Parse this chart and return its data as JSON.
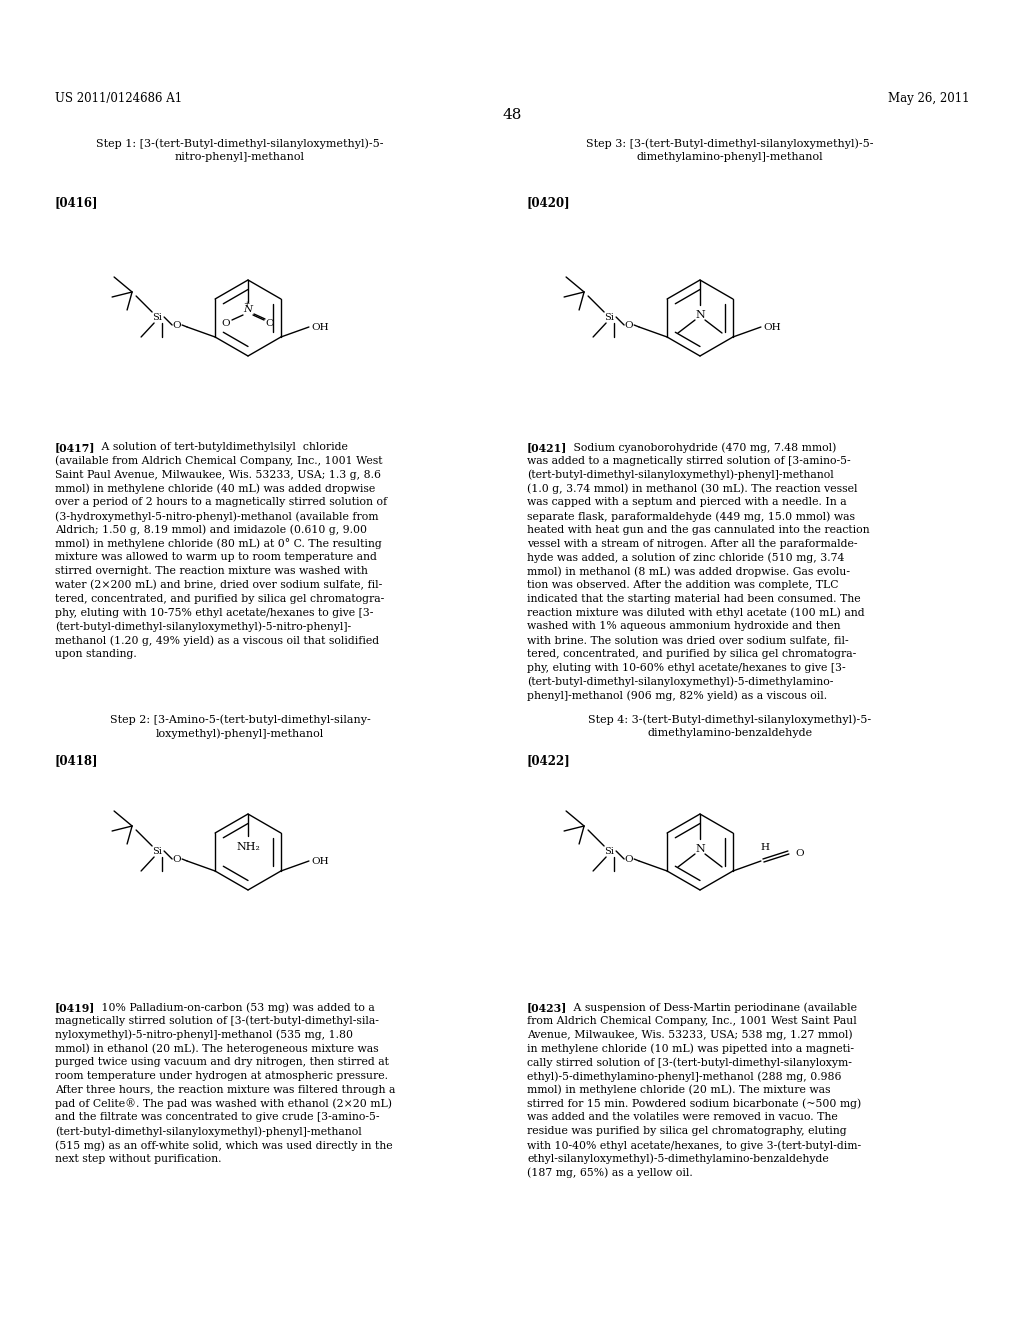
{
  "bg_color": "#ffffff",
  "page_width": 10.24,
  "page_height": 13.2,
  "header_left": "US 2011/0124686 A1",
  "header_right": "May 26, 2011",
  "page_number": "48",
  "step1_title_line1": "Step 1: [3-(tert-Butyl-dimethyl-silanyloxymethyl)-5-",
  "step1_title_line2": "nitro-phenyl]-methanol",
  "step3_title_line1": "Step 3: [3-(tert-Butyl-dimethyl-silanyloxymethyl)-5-",
  "step3_title_line2": "dimethylamino-phenyl]-methanol",
  "step2_title_line1": "Step 2: [3-Amino-5-(tert-butyl-dimethyl-silany-",
  "step2_title_line2": "loxymethyl)-phenyl]-methanol",
  "step4_title_line1": "Step 4: 3-(tert-Butyl-dimethyl-silanyloxymethyl)-5-",
  "step4_title_line2": "dimethylamino-benzaldehyde",
  "ref1": "[0416]",
  "ref3": "[0420]",
  "ref2": "[0418]",
  "ref4": "[0422]",
  "para0417_bold": "[0417]",
  "para0417_text": "   A solution of tert-butyldimethylsilyl chloride\n(available from Aldrich Chemical Company, Inc., 1001 West\nSaint Paul Avenue, Milwaukee, Wis. 53233, USA; 1.3 g, 8.6\nmmol) in methylene chloride (40 mL) was added dropwise\nover a period of 2 hours to a magnetically stirred solution of\n(3-hydroxymethyl-5-nitro-phenyl)-methanol (available from\nAldrich; 1.50 g, 8.19 mmol) and imidazole (0.610 g, 9.00\nmmol) in methylene chloride (80 mL) at 0° C. The resulting\nmixture was allowed to warm up to room temperature and\nstirred overnight. The reaction mixture was washed with\nwater (2×200 mL) and brine, dried over sodium sulfate, fil-\ntered, concentrated, and purified by silica gel chromatogra-\nphy, eluting with 10-75% ethyl acetate/hexanes to give [3-\n(tert-butyl-dimethyl-silanyloxymethyl)-5-nitro-phenyl]-\nmethanol (1.20 g, 49% yield) as a viscous oil that solidified\nupon standing.",
  "para0421_bold": "[0421]",
  "para0421_text": "   Sodium cyanoborohydride (470 mg, 7.48 mmol)\nwas added to a magnetically stirred solution of [3-amino-5-\n(tert-butyl-dimethyl-silanyloxymethyl)-phenyl]-methanol\n(1.0 g, 3.74 mmol) in methanol (30 mL). The reaction vessel\nwas capped with a septum and pierced with a needle. In a\nseparate flask, paraformaldehyde (449 mg, 15.0 mmol) was\nheated with heat gun and the gas cannulated into the reaction\nvessel with a stream of nitrogen. After all the paraformalde-\nhyde was added, a solution of zinc chloride (510 mg, 3.74\nmmol) in methanol (8 mL) was added dropwise. Gas evolu-\ntion was observed. After the addition was complete, TLC\nindicated that the starting material had been consumed. The\nreaction mixture was diluted with ethyl acetate (100 mL) and\nwashed with 1% aqueous ammonium hydroxide and then\nwith brine. The solution was dried over sodium sulfate, fil-\ntered, concentrated, and purified by silica gel chromatogra-\nphy, eluting with 10-60% ethyl acetate/hexanes to give [3-\n(tert-butyl-dimethyl-silanyloxymethyl)-5-dimethylamino-\nphenyl]-methanol (906 mg, 82% yield) as a viscous oil.",
  "para0419_bold": "[0419]",
  "para0419_text": "   10% Palladium-on-carbon (53 mg) was added to a\nmagnetically stirred solution of [3-(tert-butyl-dimethyl-sila-\nnyloxymethyl)-5-nitro-phenyl]-methanol (535 mg, 1.80\nmmol) in ethanol (20 mL). The heterogeneous mixture was\npurged twice using vacuum and dry nitrogen, then stirred at\nroom temperature under hydrogen at atmospheric pressure.\nAfter three hours, the reaction mixture was filtered through a\npad of Celite®. The pad was washed with ethanol (2×20 mL)\nand the filtrate was concentrated to give crude [3-amino-5-\n(tert-butyl-dimethyl-silanyloxymethyl)-phenyl]-methanol\n(515 mg) as an off-white solid, which was used directly in the\nnext step without purification.",
  "para0423_bold": "[0423]",
  "para0423_text": "   A suspension of Dess-Martin periodinane (available\nfrom Aldrich Chemical Company, Inc., 1001 West Saint Paul\nAvenue, Milwaukee, Wis. 53233, USA; 538 mg, 1.27 mmol)\nin methylene chloride (10 mL) was pipetted into a magneti-\ncally stirred solution of [3-(tert-butyl-dimethyl-silanyloxym-\nethyl)-5-dimethylamino-phenyl]-methanol (288 mg, 0.986\nmmol) in methylene chloride (20 mL). The mixture was\nstirred for 15 min. Powdered sodium bicarbonate (~500 mg)\nwas added and the volatiles were removed in vacuo. The\nresidue was purified by silica gel chromatography, eluting\nwith 10-40% ethyl acetate/hexanes, to give 3-(tert-butyl-dim-\nethyl-silanyloxymethyl)-5-dimethylamino-benzaldehyde\n(187 mg, 65%) as a yellow oil."
}
